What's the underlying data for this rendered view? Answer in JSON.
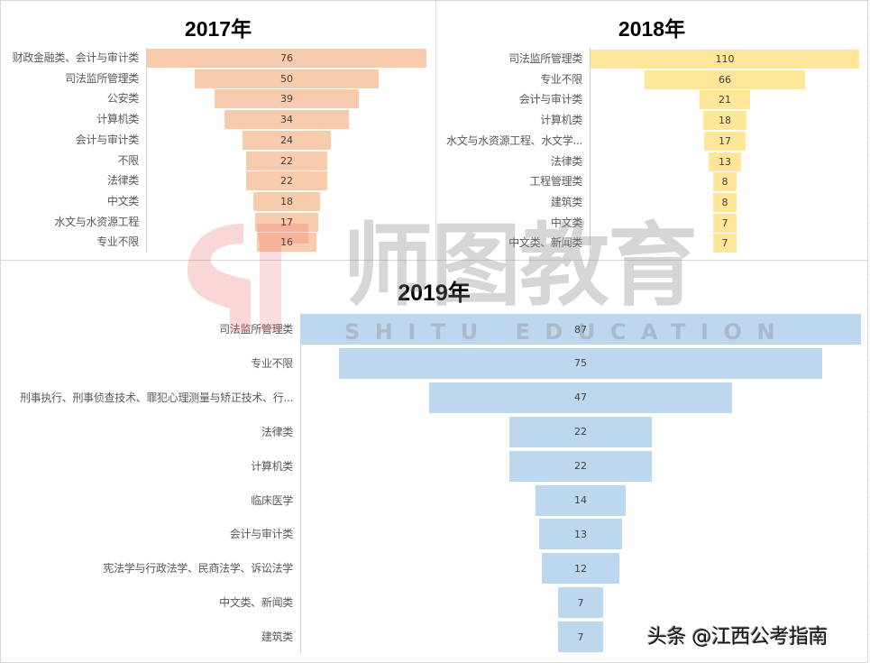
{
  "chart_data": [
    {
      "type": "bar",
      "subtype": "funnel",
      "title": "2017年",
      "color": "#F8CBAD",
      "categories": [
        "财政金融类、会计与审计类",
        "司法监所管理类",
        "公安类",
        "计算机类",
        "会计与审计类",
        "不限",
        "法律类",
        "中文类",
        "水文与水资源工程",
        "专业不限"
      ],
      "values": [
        76,
        50,
        39,
        34,
        24,
        22,
        22,
        18,
        17,
        16
      ],
      "xlabel": "",
      "ylabel": ""
    },
    {
      "type": "bar",
      "subtype": "funnel",
      "title": "2018年",
      "color": "#FFE699",
      "categories": [
        "司法监所管理类",
        "专业不限",
        "会计与审计类",
        "计算机类",
        "水文与水资源工程、水文学...",
        "法律类",
        "工程管理类",
        "建筑类",
        "中文类",
        "中文类、新闻类"
      ],
      "values": [
        110,
        66,
        21,
        18,
        17,
        13,
        8,
        8,
        7,
        7
      ],
      "xlabel": "",
      "ylabel": ""
    },
    {
      "type": "bar",
      "subtype": "funnel",
      "title": "2019年",
      "color": "#BDD7EE",
      "categories": [
        "司法监所管理类",
        "专业不限",
        "刑事执行、刑事侦查技术、罪犯心理测量与矫正技术、行...",
        "法律类",
        "计算机类",
        "临床医学",
        "会计与审计类",
        "宪法学与行政法学、民商法学、诉讼法学",
        "中文类、新闻类",
        "建筑类"
      ],
      "values": [
        87,
        75,
        47,
        22,
        22,
        14,
        13,
        12,
        7,
        7
      ],
      "xlabel": "",
      "ylabel": ""
    }
  ],
  "charts": {
    "c2017": {
      "title": "2017年",
      "rows": [
        {
          "label": "财政金融类、会计与审计类",
          "value": "76"
        },
        {
          "label": "司法监所管理类",
          "value": "50"
        },
        {
          "label": "公安类",
          "value": "39"
        },
        {
          "label": "计算机类",
          "value": "34"
        },
        {
          "label": "会计与审计类",
          "value": "24"
        },
        {
          "label": "不限",
          "value": "22"
        },
        {
          "label": "法律类",
          "value": "22"
        },
        {
          "label": "中文类",
          "value": "18"
        },
        {
          "label": "水文与水资源工程",
          "value": "17"
        },
        {
          "label": "专业不限",
          "value": "16"
        }
      ]
    },
    "c2018": {
      "title": "2018年",
      "rows": [
        {
          "label": "司法监所管理类",
          "value": "110"
        },
        {
          "label": "专业不限",
          "value": "66"
        },
        {
          "label": "会计与审计类",
          "value": "21"
        },
        {
          "label": "计算机类",
          "value": "18"
        },
        {
          "label": "水文与水资源工程、水文学...",
          "value": "17"
        },
        {
          "label": "法律类",
          "value": "13"
        },
        {
          "label": "工程管理类",
          "value": "8"
        },
        {
          "label": "建筑类",
          "value": "8"
        },
        {
          "label": "中文类",
          "value": "7"
        },
        {
          "label": "中文类、新闻类",
          "value": "7"
        }
      ]
    },
    "c2019": {
      "title": "2019年",
      "rows": [
        {
          "label": "司法监所管理类",
          "value": "87"
        },
        {
          "label": "专业不限",
          "value": "75"
        },
        {
          "label": "刑事执行、刑事侦查技术、罪犯心理测量与矫正技术、行...",
          "value": "47"
        },
        {
          "label": "法律类",
          "value": "22"
        },
        {
          "label": "计算机类",
          "value": "22"
        },
        {
          "label": "临床医学",
          "value": "14"
        },
        {
          "label": "会计与审计类",
          "value": "13"
        },
        {
          "label": "宪法学与行政法学、民商法学、诉讼法学",
          "value": "12"
        },
        {
          "label": "中文类、新闻类",
          "value": "7"
        },
        {
          "label": "建筑类",
          "value": "7"
        }
      ]
    }
  },
  "watermark": {
    "brand_cn": "师图教育",
    "brand_en": "SHITU EDUCATION",
    "logo_color": "#E8474B"
  },
  "credit": "头条 @江西公考指南"
}
